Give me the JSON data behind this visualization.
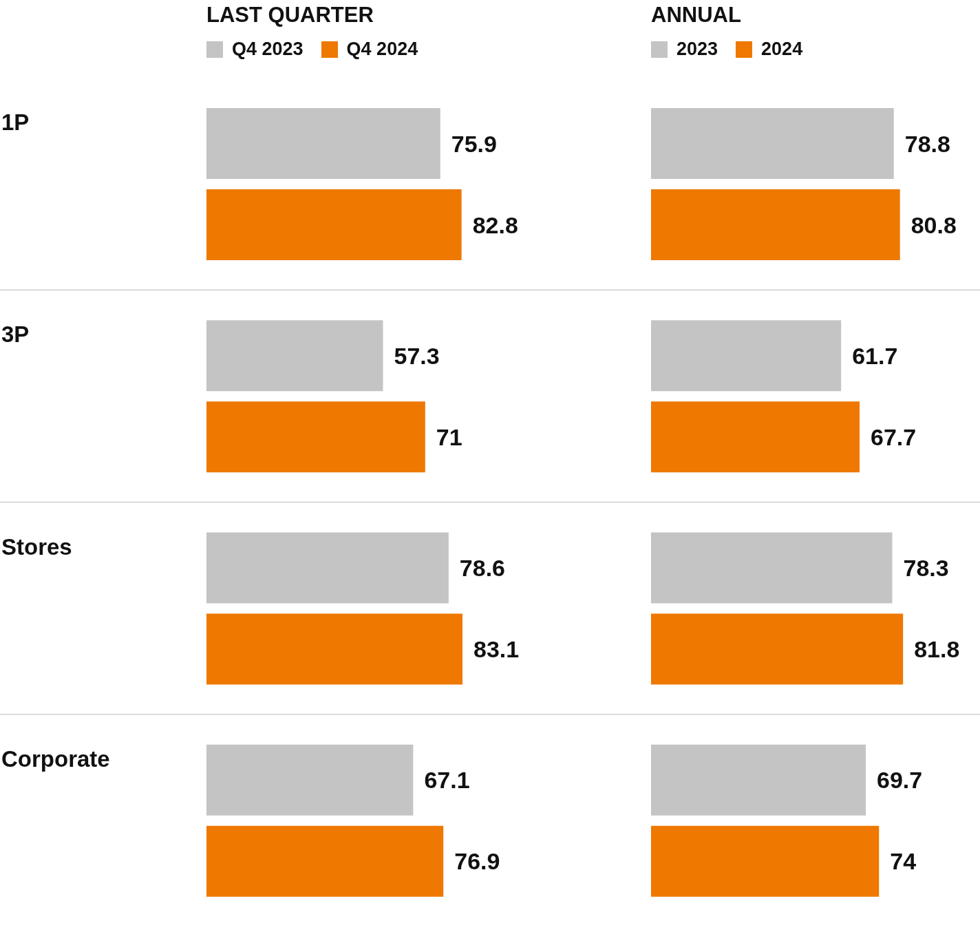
{
  "chart_data": [
    {
      "type": "bar",
      "orientation": "horizontal",
      "title": "LAST QUARTER",
      "categories": [
        "1P",
        "3P",
        "Stores",
        "Corporate"
      ],
      "series": [
        {
          "name": "Q4 2023",
          "color": "#c4c4c4",
          "values": [
            75.9,
            57.3,
            78.6,
            67.1
          ]
        },
        {
          "name": "Q4 2024",
          "color": "#ee7800",
          "values": [
            82.8,
            71,
            83.1,
            76.9
          ]
        }
      ],
      "data_labels": true,
      "legend": "top left",
      "grid": "y",
      "tick_labels": "y"
    },
    {
      "type": "bar",
      "orientation": "horizontal",
      "title": "ANNUAL",
      "categories": [
        null,
        null,
        null,
        null
      ],
      "series": [
        {
          "name": "2023",
          "color": "#c4c4c4",
          "values": [
            78.8,
            61.7,
            78.3,
            69.7
          ]
        },
        {
          "name": "2024",
          "color": "#ee7800",
          "values": [
            80.8,
            67.7,
            81.8,
            74
          ]
        }
      ],
      "data_labels": true,
      "legend": "top left",
      "grid": "y",
      "tick_labels": false
    }
  ]
}
